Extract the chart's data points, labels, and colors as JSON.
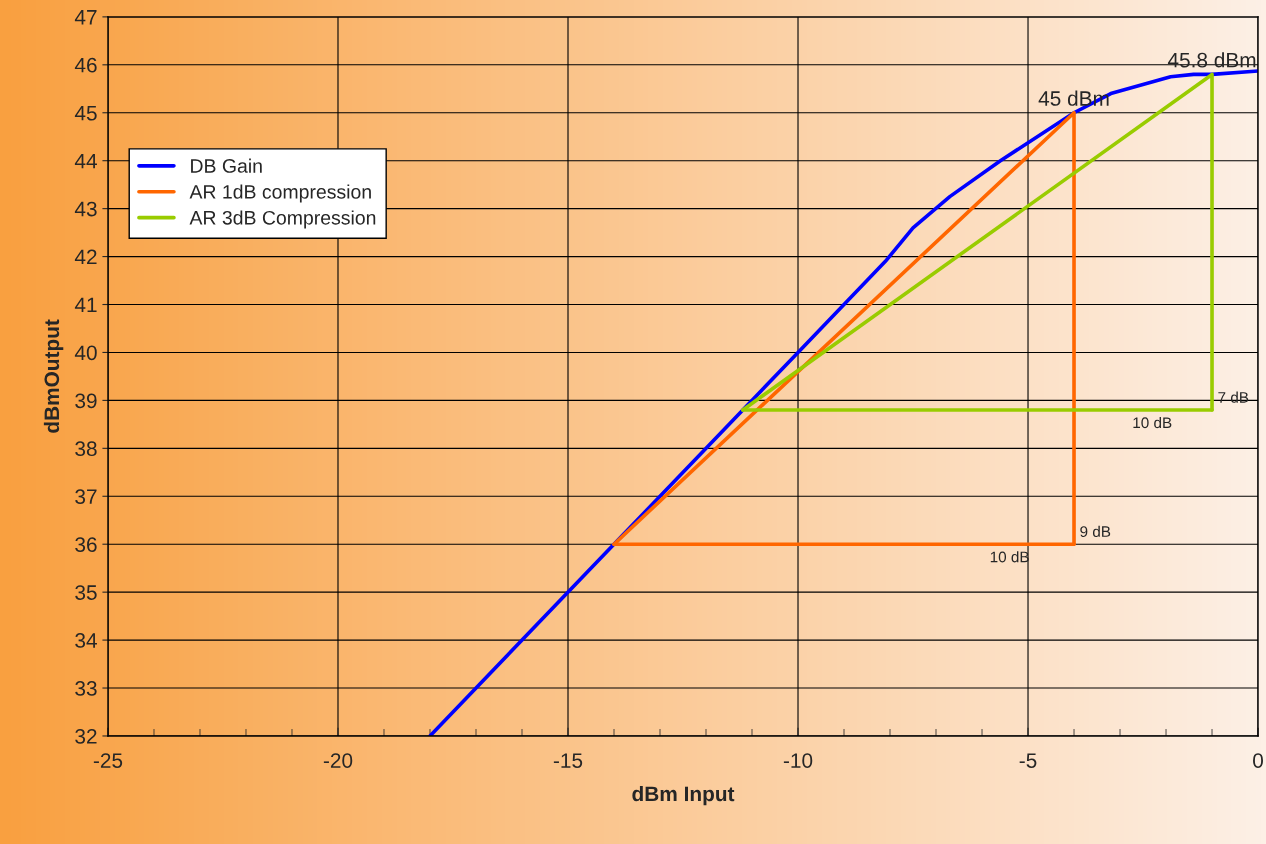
{
  "chart_data": {
    "type": "line",
    "xlabel": "dBm Input",
    "ylabel": "dBmOutput",
    "xlim": [
      -25,
      0
    ],
    "xticks": [
      -25,
      -20,
      -15,
      -10,
      -5,
      0
    ],
    "ylim": [
      32,
      47
    ],
    "yticks": [
      32,
      33,
      34,
      35,
      36,
      37,
      38,
      39,
      40,
      41,
      42,
      43,
      44,
      45,
      46,
      47
    ],
    "grid": true,
    "legend": "top left",
    "marker": "none",
    "line_style": "solid",
    "series": [
      {
        "name": "DB Gain",
        "color": "#0000ff",
        "x": [
          -18,
          -11.2,
          -10,
          -8.1,
          -7.5,
          -6.7,
          -5.6,
          -4,
          -3.2,
          -1.9,
          -1.4,
          -1,
          0
        ],
        "values": [
          32,
          38.8,
          40,
          41.9,
          42.6,
          43.25,
          44,
          45,
          45.4,
          45.75,
          45.8,
          45.8,
          45.87
        ]
      },
      {
        "name": "AR 1dB compression",
        "color": "#ff6600",
        "x": [
          -14,
          -4,
          -4
        ],
        "values": [
          36,
          45,
          36
        ]
      },
      {
        "color": "#ff6600",
        "x": [
          -14,
          -4
        ],
        "values": [
          36,
          36
        ]
      },
      {
        "name": "AR 3dB Compression",
        "color": "#99cc00",
        "x": [
          -11.2,
          -1,
          -1
        ],
        "values": [
          38.8,
          45.8,
          38.8
        ]
      },
      {
        "color": "#99cc00",
        "x": [
          -11.2,
          -1
        ],
        "values": [
          38.8,
          38.8
        ]
      }
    ],
    "annotations": [
      {
        "text": "45 dBm",
        "x": -4,
        "y": 45
      },
      {
        "text": "45.8 dBm",
        "x": -1,
        "y": 45.8
      },
      {
        "text": "9 dB",
        "x": -4,
        "y": 36
      },
      {
        "text": "10 dB",
        "x": -5.4,
        "y": 36
      },
      {
        "text": "7 dB",
        "x": -1,
        "y": 38.8
      },
      {
        "text": "10 dB",
        "x": -2.3,
        "y": 38.8
      }
    ]
  }
}
